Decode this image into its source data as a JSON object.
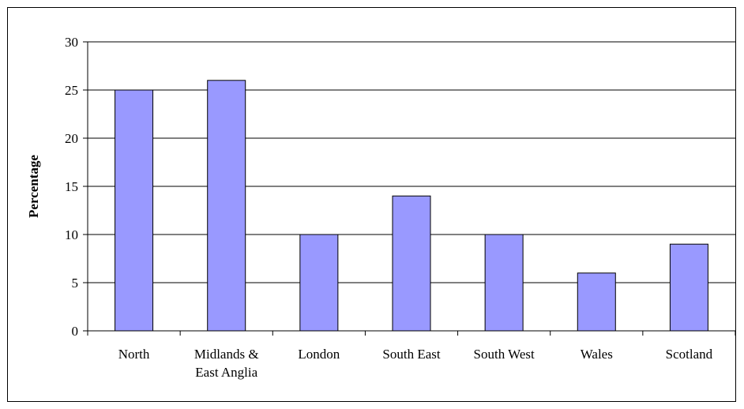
{
  "chart_data": {
    "type": "bar",
    "categories": [
      "North",
      "Midlands & East Anglia",
      "London",
      "South East",
      "South West",
      "Wales",
      "Scotland"
    ],
    "category_label_lines": [
      [
        "North"
      ],
      [
        "Midlands &",
        "East Anglia"
      ],
      [
        "London"
      ],
      [
        "South East"
      ],
      [
        "South West"
      ],
      [
        "Wales"
      ],
      [
        "Scotland"
      ]
    ],
    "values": [
      25,
      26,
      10,
      14,
      10,
      6,
      9
    ],
    "title": "",
    "xlabel": "",
    "ylabel": "Percentage",
    "ylim": [
      0,
      30
    ],
    "yticks": [
      0,
      5,
      10,
      15,
      20,
      25,
      30
    ],
    "grid": true,
    "legend": "none",
    "bar_color": "#9999ff",
    "bar_edge_color": "#000000"
  }
}
